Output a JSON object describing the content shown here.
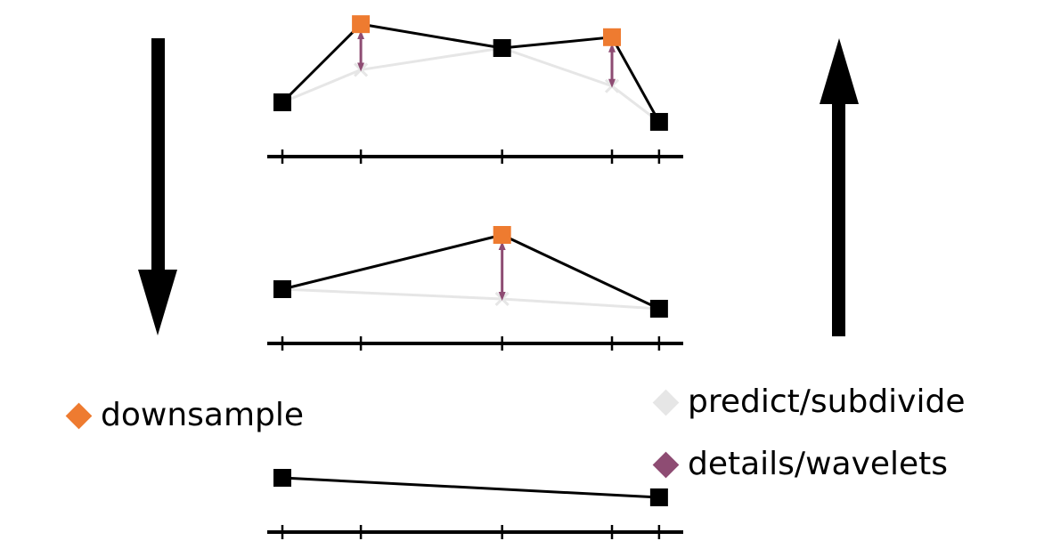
{
  "colors": {
    "sample": "#000000",
    "downsample": "#EE7B30",
    "predict": "#E6E6E6",
    "detail": "#8E4C73",
    "axis": "#000000"
  },
  "legend": {
    "downsample": "downsample",
    "predict": "predict/subdivide",
    "details": "details/wavelets"
  },
  "diagram": {
    "ticks": [
      0,
      1,
      2.8,
      4.2,
      4.8
    ],
    "levels": [
      {
        "id": "fine",
        "samples": [
          {
            "t": 0,
            "v": 0.5,
            "kind": "kept"
          },
          {
            "t": 1,
            "v": 1.22,
            "kind": "removed"
          },
          {
            "t": 2.8,
            "v": 1.0,
            "kind": "kept"
          },
          {
            "t": 4.2,
            "v": 1.1,
            "kind": "removed"
          },
          {
            "t": 4.8,
            "v": 0.32,
            "kind": "kept"
          }
        ],
        "predicted": [
          {
            "t": 1,
            "v": 0.8
          },
          {
            "t": 4.2,
            "v": 0.65
          }
        ]
      },
      {
        "id": "medium",
        "samples": [
          {
            "t": 0,
            "v": 0.5,
            "kind": "kept"
          },
          {
            "t": 2.8,
            "v": 1.0,
            "kind": "removed"
          },
          {
            "t": 4.8,
            "v": 0.32,
            "kind": "kept"
          }
        ],
        "predicted": [
          {
            "t": 2.8,
            "v": 0.41
          }
        ]
      },
      {
        "id": "coarse",
        "samples": [
          {
            "t": 0,
            "v": 0.5,
            "kind": "kept"
          },
          {
            "t": 4.8,
            "v": 0.32,
            "kind": "kept"
          }
        ],
        "predicted": []
      }
    ],
    "arrows": [
      {
        "id": "analysis",
        "direction": "down"
      },
      {
        "id": "synthesis",
        "direction": "up"
      }
    ]
  }
}
